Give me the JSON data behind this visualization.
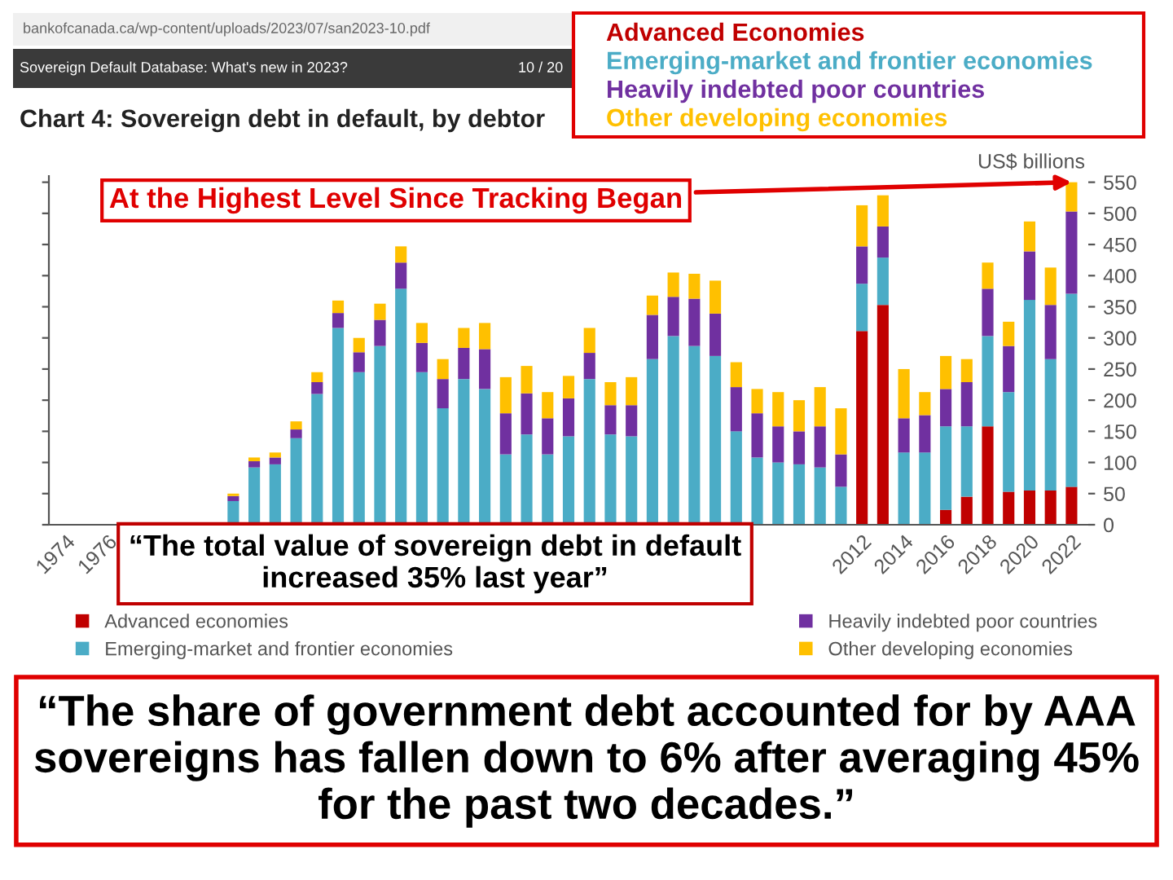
{
  "chart_data": {
    "type": "bar",
    "stacked": true,
    "title": "Chart 4: Sovereign debt in default, by debtor",
    "ylabel": "US$ billions",
    "categories": [
      "1974",
      null,
      "1976",
      null,
      null,
      null,
      null,
      null,
      null,
      null,
      null,
      null,
      null,
      null,
      null,
      null,
      null,
      null,
      null,
      null,
      null,
      null,
      null,
      null,
      null,
      null,
      null,
      null,
      null,
      null,
      null,
      null,
      null,
      null,
      null,
      null,
      null,
      null,
      "2012",
      null,
      "2014",
      null,
      "2016",
      null,
      "2018",
      null,
      "2020",
      null,
      "2022"
    ],
    "series": [
      {
        "name": "Advanced economies",
        "color": "#c00000",
        "values": [
          0,
          0,
          0,
          0,
          0,
          0,
          0,
          0,
          0,
          0,
          0,
          0,
          0,
          0,
          0,
          0,
          0,
          0,
          0,
          0,
          0,
          0,
          0,
          0,
          0,
          0,
          0,
          0,
          0,
          0,
          0,
          0,
          0,
          0,
          0,
          0,
          0,
          0,
          311,
          353,
          0,
          0,
          24,
          45,
          158,
          53,
          55,
          55,
          61
        ]
      },
      {
        "name": "Emerging-market and frontier economies",
        "color": "#4bacc6",
        "values": [
          0,
          0,
          0,
          0,
          0,
          0,
          0,
          0,
          38,
          92,
          97,
          139,
          210,
          316,
          245,
          287,
          379,
          245,
          187,
          234,
          218,
          113,
          145,
          113,
          142,
          234,
          145,
          142,
          266,
          303,
          287,
          271,
          150,
          108,
          100,
          97,
          92,
          61,
          76,
          76,
          116,
          116,
          134,
          113,
          145,
          160,
          306,
          211,
          310
        ]
      },
      {
        "name": "Heavily indebted poor countries",
        "color": "#7030a0",
        "values": [
          0,
          0,
          0,
          0,
          0,
          0,
          0,
          0,
          8,
          10,
          11,
          14,
          19,
          24,
          32,
          42,
          42,
          47,
          47,
          50,
          64,
          66,
          66,
          58,
          61,
          42,
          47,
          50,
          71,
          63,
          76,
          68,
          71,
          71,
          58,
          53,
          66,
          52,
          60,
          50,
          55,
          60,
          60,
          71,
          76,
          74,
          78,
          87,
          132
        ]
      },
      {
        "name": "Other developing economies",
        "color": "#ffc000",
        "values": [
          null,
          null,
          0,
          0,
          0,
          0,
          0,
          0,
          4,
          6,
          8,
          13,
          16,
          20,
          23,
          26,
          26,
          32,
          32,
          32,
          42,
          58,
          44,
          42,
          36,
          40,
          37,
          45,
          31,
          39,
          40,
          53,
          40,
          39,
          55,
          50,
          63,
          74,
          66,
          50,
          79,
          37,
          53,
          37,
          42,
          39,
          48,
          60,
          47
        ]
      }
    ],
    "ylim": [
      0,
      560
    ],
    "yticks": [
      0,
      50,
      100,
      150,
      200,
      250,
      300,
      350,
      400,
      450,
      500,
      550
    ],
    "grid": false,
    "legend": "bottom",
    "annotations": [
      {
        "text": "At the Highest Level Since Tracking Began",
        "x": "2022",
        "y": 550
      },
      "“The total value of sovereign debt in default increased 35% last year”",
      "“The share of government debt accounted for by AAA sovereigns has fallen down to 6% after averaging 45% for the past two decades.”",
      "Advanced Economies",
      "Emerging-market and frontier economies",
      "Heavily indebted poor countries",
      "Other developing economies",
      "bankofcanada.ca/wp-content/uploads/2023/07/san2023-10.pdf",
      "Sovereign Default Database: What's new in 2023?",
      "10 / 20"
    ]
  }
}
